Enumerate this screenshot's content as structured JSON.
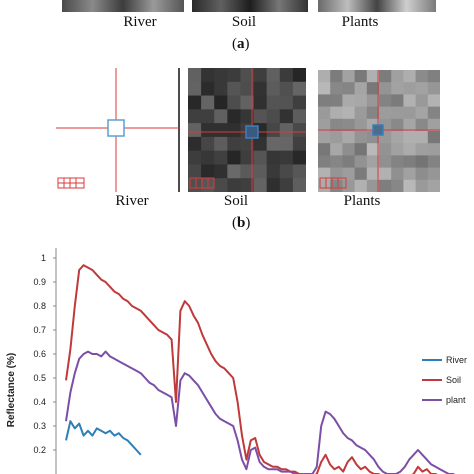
{
  "panel_a": {
    "labels": [
      "River",
      "Soil",
      "Plants"
    ],
    "tag_open": "(",
    "tag_letter": "a",
    "tag_close": ")"
  },
  "panel_b": {
    "labels": [
      "River",
      "Soil",
      "Plants"
    ],
    "tag_open": "(",
    "tag_letter": "b",
    "tag_close": ")"
  },
  "colors": {
    "crosshair": "#d93a3a",
    "box_river": "#5aa0d8",
    "box_other": "#3a7fc0",
    "river": "#2e7fb8",
    "soil": "#c0393b",
    "plant": "#7b4fa6"
  },
  "chart_data": {
    "type": "line",
    "title": "",
    "xlabel": "",
    "ylabel": "Reflectance (%)",
    "ylim": [
      0,
      1
    ],
    "yticks": [
      "0.2",
      "0.3",
      "0.4",
      "0.5",
      "0.6",
      "0.7",
      "0.8",
      "0.9",
      "1"
    ],
    "legend_position": "right",
    "series": [
      {
        "name": "River",
        "color": "#2e7fb8",
        "x": [
          0,
          1,
          2,
          3,
          4,
          5,
          6,
          7,
          8,
          9,
          10,
          11,
          12,
          13,
          14,
          15,
          16,
          17
        ],
        "y": [
          0.24,
          0.32,
          0.29,
          0.31,
          0.26,
          0.28,
          0.26,
          0.29,
          0.28,
          0.27,
          0.28,
          0.26,
          0.27,
          0.25,
          0.24,
          0.22,
          0.2,
          0.18
        ]
      },
      {
        "name": "Soil",
        "color": "#c0393b",
        "x": [
          0,
          1,
          2,
          3,
          4,
          5,
          6,
          7,
          8,
          9,
          10,
          11,
          12,
          13,
          14,
          15,
          16,
          17,
          18,
          19,
          20,
          21,
          22,
          23,
          24,
          25,
          26,
          27,
          28,
          29,
          30,
          31,
          32,
          33,
          34,
          35,
          36,
          37,
          38,
          39,
          40,
          41,
          42,
          43,
          44,
          45,
          46,
          47,
          48,
          49,
          50,
          51,
          52,
          53,
          54,
          55,
          56,
          57,
          58,
          59,
          60,
          61,
          62,
          63,
          64,
          65,
          66,
          67,
          68,
          69,
          70,
          71,
          72,
          73,
          74,
          75,
          76,
          77,
          78,
          79,
          80,
          81,
          82,
          83,
          84,
          85,
          86,
          87,
          88,
          89,
          90
        ],
        "y": [
          0.49,
          0.62,
          0.8,
          0.95,
          0.97,
          0.96,
          0.95,
          0.93,
          0.91,
          0.9,
          0.88,
          0.86,
          0.85,
          0.83,
          0.82,
          0.8,
          0.79,
          0.78,
          0.76,
          0.74,
          0.72,
          0.7,
          0.69,
          0.68,
          0.66,
          0.4,
          0.78,
          0.82,
          0.8,
          0.76,
          0.73,
          0.68,
          0.64,
          0.6,
          0.57,
          0.55,
          0.54,
          0.52,
          0.5,
          0.4,
          0.26,
          0.16,
          0.24,
          0.25,
          0.18,
          0.15,
          0.14,
          0.13,
          0.13,
          0.12,
          0.12,
          0.11,
          0.11,
          0.1,
          0.1,
          0.1,
          0.09,
          0.1,
          0.15,
          0.18,
          0.14,
          0.12,
          0.13,
          0.11,
          0.15,
          0.17,
          0.14,
          0.12,
          0.13,
          0.11,
          0.1,
          0.1,
          0.09,
          0.09,
          0.08,
          0.08,
          0.08,
          0.09,
          0.09,
          0.1,
          0.13,
          0.11,
          0.12,
          0.1,
          0.1,
          0.09,
          0.09,
          0.08,
          0.08,
          0.08,
          0.08
        ]
      },
      {
        "name": "plant",
        "color": "#7b4fa6",
        "x": [
          0,
          1,
          2,
          3,
          4,
          5,
          6,
          7,
          8,
          9,
          10,
          11,
          12,
          13,
          14,
          15,
          16,
          17,
          18,
          19,
          20,
          21,
          22,
          23,
          24,
          25,
          26,
          27,
          28,
          29,
          30,
          31,
          32,
          33,
          34,
          35,
          36,
          37,
          38,
          39,
          40,
          41,
          42,
          43,
          44,
          45,
          46,
          47,
          48,
          49,
          50,
          51,
          52,
          53,
          54,
          55,
          56,
          57,
          58,
          59,
          60,
          61,
          62,
          63,
          64,
          65,
          66,
          67,
          68,
          69,
          70,
          71,
          72,
          73,
          74,
          75,
          76,
          77,
          78,
          79,
          80,
          81,
          82,
          83,
          84,
          85,
          86,
          87,
          88,
          89,
          90
        ],
        "y": [
          0.32,
          0.44,
          0.52,
          0.58,
          0.6,
          0.61,
          0.6,
          0.6,
          0.59,
          0.61,
          0.59,
          0.58,
          0.57,
          0.56,
          0.55,
          0.54,
          0.53,
          0.52,
          0.5,
          0.48,
          0.47,
          0.45,
          0.44,
          0.43,
          0.42,
          0.3,
          0.49,
          0.52,
          0.51,
          0.49,
          0.47,
          0.44,
          0.41,
          0.38,
          0.35,
          0.33,
          0.32,
          0.31,
          0.3,
          0.24,
          0.16,
          0.12,
          0.2,
          0.21,
          0.15,
          0.13,
          0.12,
          0.12,
          0.12,
          0.11,
          0.11,
          0.11,
          0.1,
          0.1,
          0.1,
          0.1,
          0.1,
          0.13,
          0.3,
          0.36,
          0.35,
          0.33,
          0.3,
          0.27,
          0.25,
          0.24,
          0.22,
          0.21,
          0.2,
          0.18,
          0.16,
          0.13,
          0.11,
          0.1,
          0.1,
          0.1,
          0.11,
          0.13,
          0.16,
          0.18,
          0.2,
          0.18,
          0.16,
          0.14,
          0.13,
          0.12,
          0.11,
          0.1,
          0.1,
          0.09,
          0.09
        ]
      }
    ]
  }
}
